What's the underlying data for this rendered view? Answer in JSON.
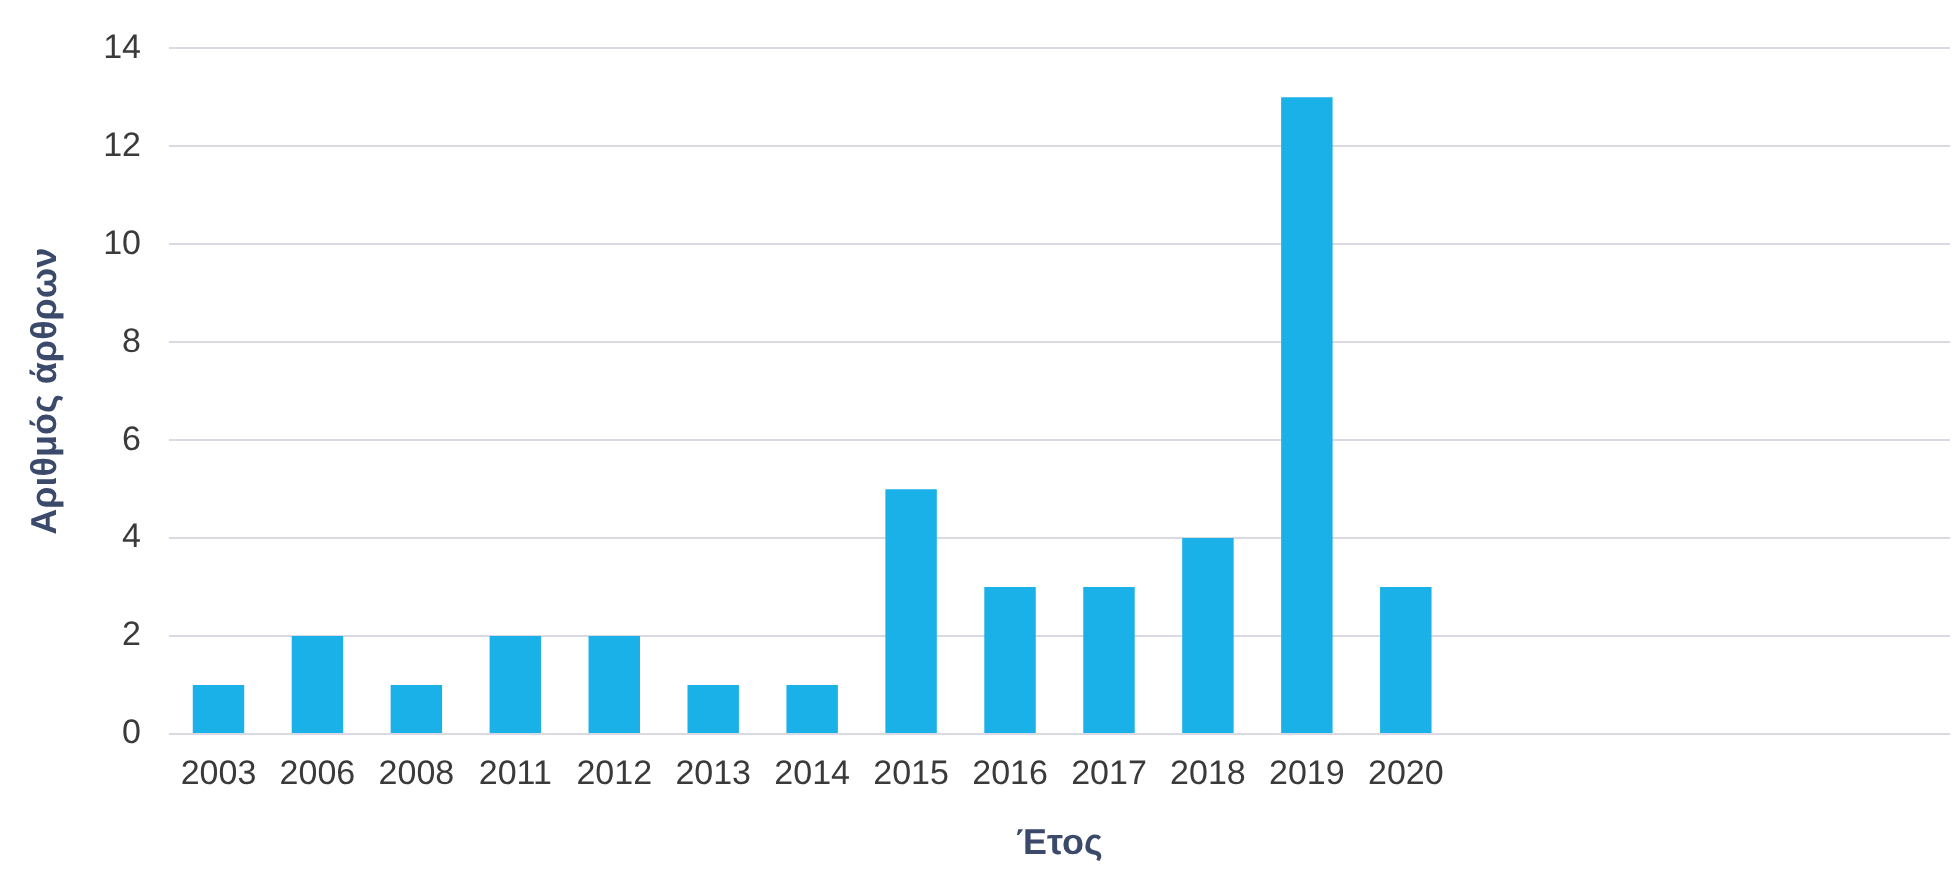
{
  "chart_data": {
    "type": "bar",
    "xlabel": "Έτος",
    "ylabel": "Αριθμός άρθρων",
    "categories": [
      "2003",
      "2006",
      "2008",
      "2011",
      "2012",
      "2013",
      "2014",
      "2015",
      "2016",
      "2017",
      "2018",
      "2019",
      "2020",
      null,
      null,
      null,
      null,
      null
    ],
    "values": [
      1,
      2,
      1,
      2,
      2,
      1,
      1,
      5,
      3,
      3,
      4,
      13,
      3,
      null,
      null,
      null,
      null,
      null
    ],
    "color": "#1ab0e8",
    "ylim": [
      0,
      14
    ],
    "yticks": [
      0,
      2,
      4,
      6,
      8,
      10,
      12,
      14
    ],
    "grid": "y",
    "legend": false
  }
}
